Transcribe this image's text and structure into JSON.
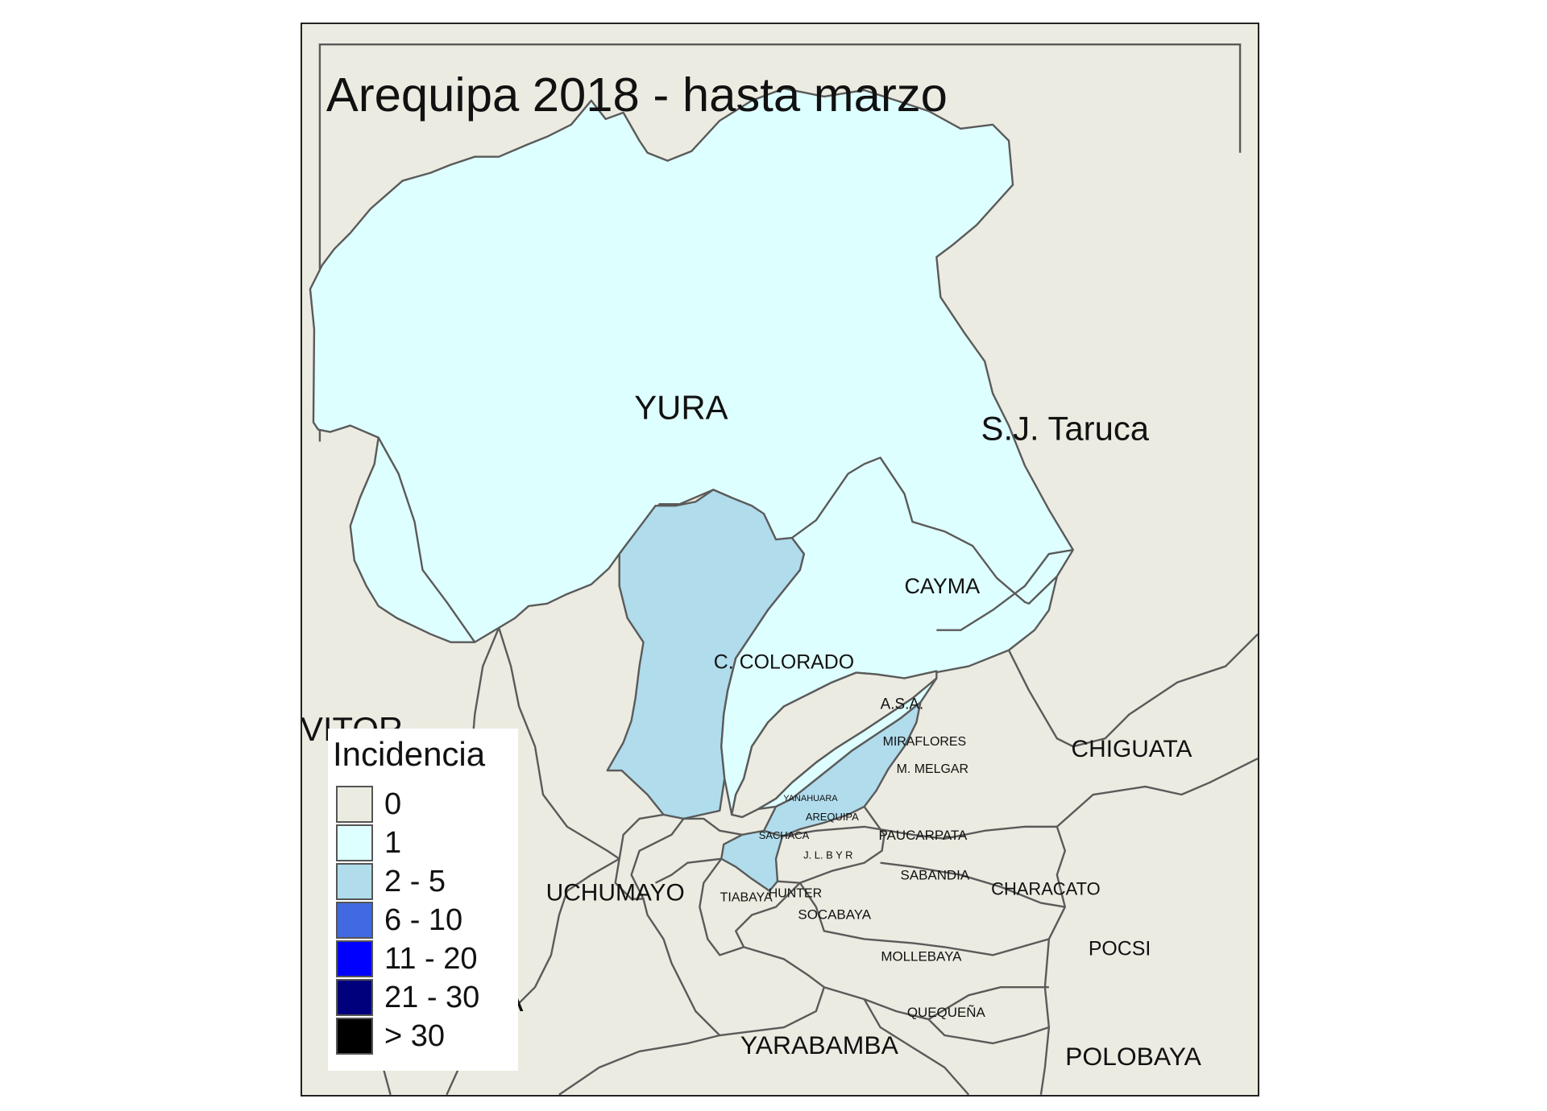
{
  "map": {
    "title": "Arequipa 2018 - hasta marzo",
    "colors": {
      "background_district": "#EBEBE1",
      "class_1": "#DEFFFF",
      "class_2_5": "#B0DCEC",
      "border": "#5A5A5A"
    },
    "districts": [
      {
        "name": "YURA",
        "class": "1"
      },
      {
        "name": "S.J. Taruca",
        "class": "0"
      },
      {
        "name": "CAYMA",
        "class": "1"
      },
      {
        "name": "C. COLORADO",
        "class": "2 - 5"
      },
      {
        "name": "A.S.A.",
        "class": "0"
      },
      {
        "name": "MIRAFLORES",
        "class": "1"
      },
      {
        "name": "M. MELGAR",
        "class": "2 - 5"
      },
      {
        "name": "CHIGUATA",
        "class": "0"
      },
      {
        "name": "VITOR",
        "class": "0"
      },
      {
        "name": "YANAHUARA",
        "class": "0"
      },
      {
        "name": "AREQUIPA",
        "class": "0"
      },
      {
        "name": "SACHACA",
        "class": "0"
      },
      {
        "name": "PAUCARPATA",
        "class": "0"
      },
      {
        "name": "J. L. B Y R",
        "class": "2 - 5"
      },
      {
        "name": "SABANDIA",
        "class": "0"
      },
      {
        "name": "CHARACATO",
        "class": "0"
      },
      {
        "name": "UCHUMAYO",
        "class": "0"
      },
      {
        "name": "TIABAYA",
        "class": "0"
      },
      {
        "name": "HUNTER",
        "class": "0"
      },
      {
        "name": "SOCABAYA",
        "class": "0"
      },
      {
        "name": "POCSI",
        "class": "0"
      },
      {
        "name": "MOLLEBAYA",
        "class": "0"
      },
      {
        "name": "QUEQUEÑA",
        "class": "0"
      },
      {
        "name": "YARABAMBA",
        "class": "0"
      },
      {
        "name": "POLOBAYA",
        "class": "0"
      }
    ],
    "partial_label": "A"
  },
  "legend": {
    "title": "Incidencia",
    "items": [
      {
        "label": "0",
        "color": "#EBEBE1"
      },
      {
        "label": "1",
        "color": "#DEFFFF"
      },
      {
        "label": "2 - 5",
        "color": "#B0DCEC"
      },
      {
        "label": "6 - 10",
        "color": "#4169E1"
      },
      {
        "label": "11 - 20",
        "color": "#0000FF"
      },
      {
        "label": "21 - 30",
        "color": "#00007D"
      },
      {
        "label": "> 30",
        "color": "#000000"
      }
    ]
  }
}
